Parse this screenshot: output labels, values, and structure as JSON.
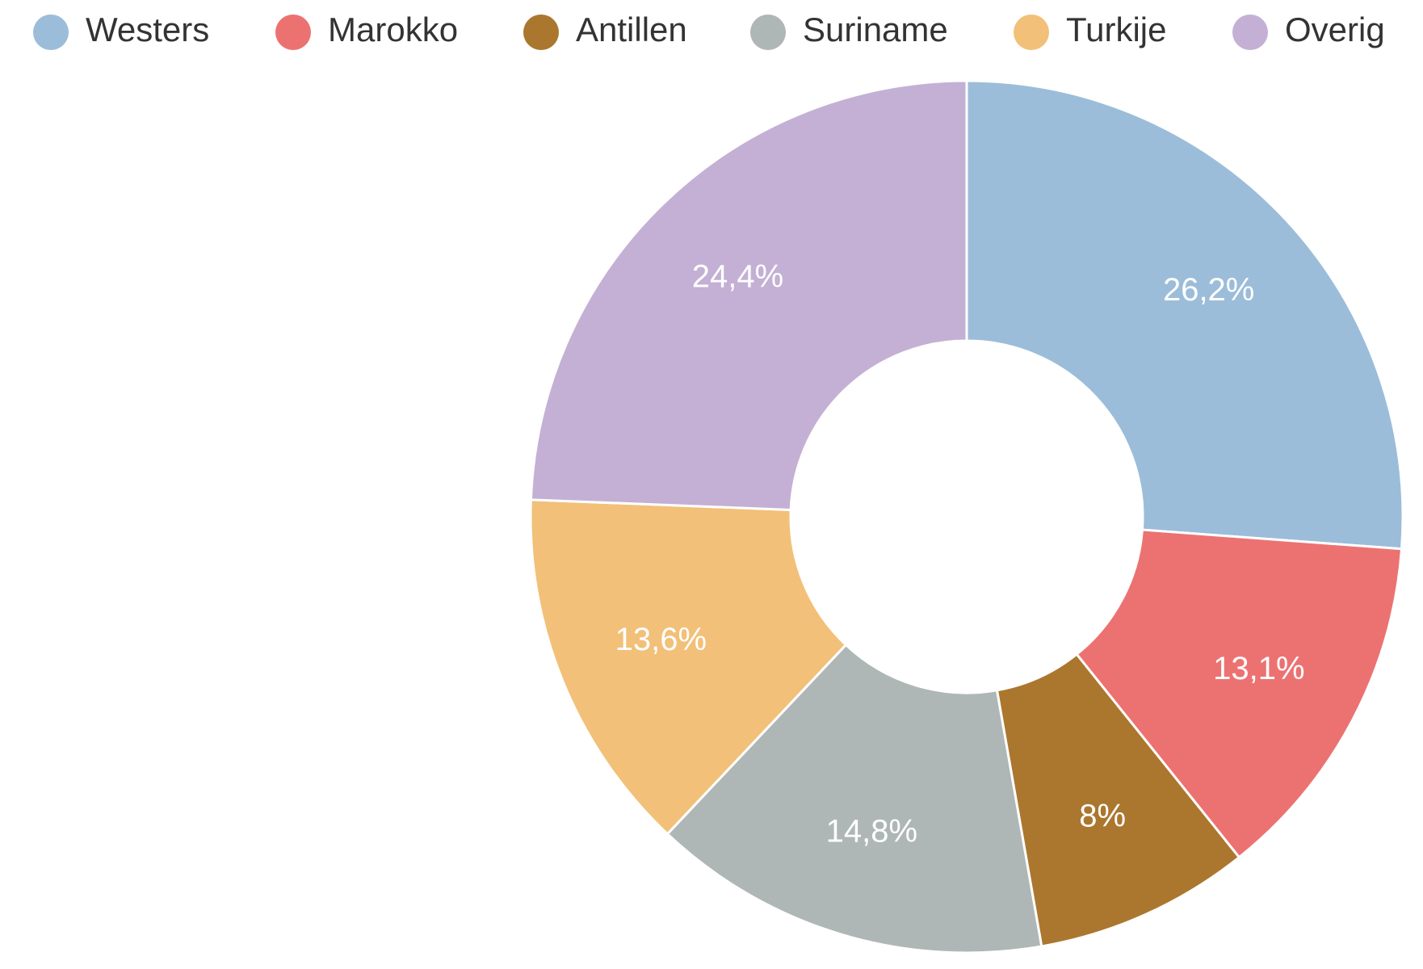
{
  "chart_data": {
    "type": "donut",
    "categories": [
      "Westers",
      "Marokko",
      "Antillen",
      "Suriname",
      "Turkije",
      "Overig"
    ],
    "values": [
      26.2,
      13.1,
      8,
      14.8,
      13.6,
      24.4
    ],
    "value_labels": [
      "26,2%",
      "13,1%",
      "8%",
      "14,8%",
      "13,6%",
      "24,4%"
    ],
    "colors": [
      "#9bbdd9",
      "#ec7272",
      "#ab772e",
      "#afb7b6",
      "#f2c078",
      "#c4b0d4"
    ],
    "legend": "top"
  }
}
